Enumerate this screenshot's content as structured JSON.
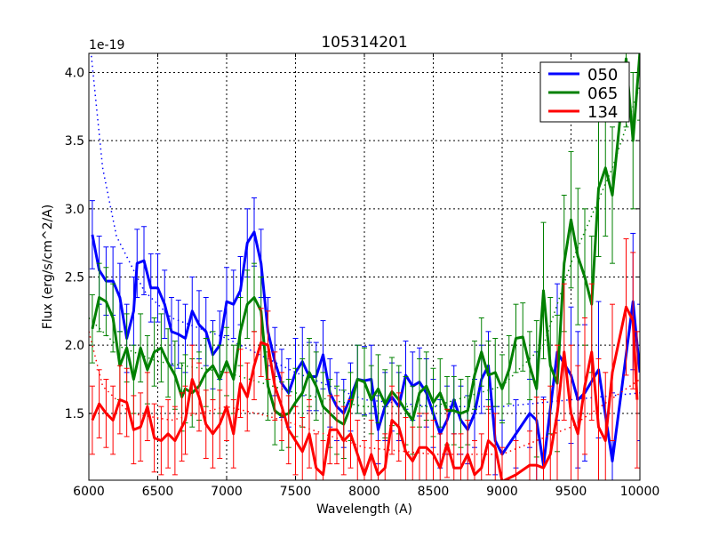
{
  "chart_data": {
    "type": "line",
    "title": "105314201",
    "xlabel": "Wavelength (A)",
    "ylabel": "Flux (erg/s/cm^2/A)",
    "offset_text": "1e-19",
    "xlim": [
      6000,
      10000
    ],
    "ylim": [
      1.01,
      4.14
    ],
    "xticks": [
      6000,
      6500,
      7000,
      7500,
      8000,
      8500,
      9000,
      9500,
      10000
    ],
    "yticks": [
      1.5,
      2.0,
      2.5,
      3.0,
      3.5,
      4.0
    ],
    "ytick_labels": [
      "1.5",
      "2.0",
      "2.5",
      "3.0",
      "3.5",
      "4.0"
    ],
    "grid": true,
    "legend_position": "top-right",
    "series": [
      {
        "name": "050",
        "color": "#0000ff",
        "err": 0.25,
        "err_red": 0.5,
        "x": [
          6025,
          6075,
          6125,
          6175,
          6225,
          6275,
          6325,
          6350,
          6400,
          6450,
          6500,
          6550,
          6600,
          6650,
          6700,
          6750,
          6800,
          6850,
          6900,
          6950,
          7000,
          7050,
          7100,
          7150,
          7200,
          7250,
          7300,
          7350,
          7400,
          7450,
          7500,
          7550,
          7600,
          7650,
          7700,
          7750,
          7800,
          7850,
          7900,
          7950,
          8000,
          8050,
          8100,
          8150,
          8200,
          8250,
          8300,
          8350,
          8400,
          8450,
          8500,
          8550,
          8600,
          8650,
          8700,
          8750,
          8800,
          8850,
          8900,
          8950,
          9000,
          9100,
          9200,
          9250,
          9300,
          9400,
          9500,
          9550,
          9600,
          9700,
          9800,
          9950,
          10000
        ],
        "y": [
          2.81,
          2.55,
          2.47,
          2.47,
          2.35,
          2.05,
          2.25,
          2.6,
          2.62,
          2.42,
          2.42,
          2.3,
          2.1,
          2.08,
          2.05,
          2.25,
          2.15,
          2.1,
          1.93,
          2.0,
          2.32,
          2.3,
          2.4,
          2.75,
          2.83,
          2.6,
          2.1,
          1.88,
          1.72,
          1.65,
          1.8,
          1.88,
          1.77,
          1.77,
          1.93,
          1.65,
          1.55,
          1.5,
          1.62,
          1.75,
          1.74,
          1.75,
          1.38,
          1.55,
          1.62,
          1.55,
          1.78,
          1.7,
          1.73,
          1.65,
          1.5,
          1.35,
          1.45,
          1.6,
          1.45,
          1.38,
          1.5,
          1.75,
          1.85,
          1.3,
          1.2,
          1.35,
          1.5,
          1.45,
          1.12,
          1.95,
          1.78,
          1.6,
          1.65,
          1.82,
          1.15,
          2.32,
          1.8
        ],
        "model": {
          "x": [
            6000,
            6100,
            6200,
            6400,
            6600,
            7000,
            7500,
            8000,
            8500,
            9000,
            9500,
            10000
          ],
          "y": [
            4.3,
            3.3,
            2.8,
            2.4,
            2.2,
            2.05,
            1.8,
            1.6,
            1.55,
            1.55,
            1.6,
            1.65
          ]
        }
      },
      {
        "name": "065",
        "color": "#008000",
        "err": 0.25,
        "err_red": 0.5,
        "x": [
          6025,
          6075,
          6125,
          6175,
          6225,
          6275,
          6325,
          6375,
          6425,
          6475,
          6525,
          6575,
          6625,
          6675,
          6700,
          6750,
          6800,
          6850,
          6900,
          6950,
          7000,
          7050,
          7100,
          7150,
          7200,
          7250,
          7300,
          7350,
          7400,
          7450,
          7500,
          7550,
          7600,
          7650,
          7700,
          7750,
          7800,
          7850,
          7900,
          7950,
          8000,
          8050,
          8100,
          8150,
          8200,
          8250,
          8300,
          8350,
          8400,
          8450,
          8500,
          8550,
          8600,
          8650,
          8700,
          8750,
          8800,
          8850,
          8900,
          8950,
          9000,
          9050,
          9100,
          9150,
          9200,
          9250,
          9300,
          9350,
          9400,
          9450,
          9500,
          9550,
          9600,
          9650,
          9700,
          9750,
          9800,
          9900,
          9950,
          10000
        ],
        "y": [
          2.12,
          2.35,
          2.32,
          2.2,
          1.85,
          1.98,
          1.75,
          1.98,
          1.82,
          1.95,
          1.98,
          1.87,
          1.78,
          1.62,
          1.68,
          1.65,
          1.7,
          1.8,
          1.85,
          1.75,
          1.88,
          1.75,
          2.1,
          2.3,
          2.35,
          2.25,
          1.7,
          1.52,
          1.48,
          1.5,
          1.58,
          1.65,
          1.8,
          1.7,
          1.55,
          1.5,
          1.45,
          1.42,
          1.55,
          1.75,
          1.73,
          1.6,
          1.68,
          1.57,
          1.66,
          1.6,
          1.52,
          1.45,
          1.65,
          1.7,
          1.58,
          1.65,
          1.52,
          1.52,
          1.5,
          1.52,
          1.78,
          1.95,
          1.78,
          1.8,
          1.68,
          1.82,
          2.05,
          2.06,
          1.85,
          1.68,
          2.4,
          1.85,
          1.72,
          2.6,
          2.92,
          2.65,
          2.5,
          2.3,
          3.15,
          3.3,
          3.1,
          4.1,
          3.5,
          4.15
        ],
        "model": {
          "x": [
            6000,
            6200,
            6500,
            7000,
            7500,
            8000,
            8500,
            9000,
            9300,
            9500,
            9800,
            10000
          ],
          "y": [
            2.2,
            2.0,
            1.88,
            1.8,
            1.65,
            1.55,
            1.55,
            1.7,
            2.0,
            2.6,
            3.3,
            3.9
          ]
        }
      },
      {
        "name": "134",
        "color": "#ff0000",
        "err": 0.25,
        "err_red": 0.5,
        "x": [
          6025,
          6075,
          6125,
          6175,
          6225,
          6275,
          6325,
          6375,
          6425,
          6475,
          6525,
          6575,
          6625,
          6675,
          6700,
          6750,
          6800,
          6850,
          6900,
          6950,
          7000,
          7050,
          7100,
          7150,
          7200,
          7250,
          7300,
          7350,
          7400,
          7450,
          7500,
          7550,
          7600,
          7650,
          7700,
          7750,
          7800,
          7850,
          7900,
          7950,
          8000,
          8050,
          8100,
          8150,
          8200,
          8250,
          8300,
          8350,
          8400,
          8450,
          8500,
          8550,
          8600,
          8650,
          8700,
          8750,
          8800,
          8850,
          8900,
          8950,
          9000,
          9100,
          9200,
          9250,
          9300,
          9350,
          9400,
          9450,
          9500,
          9550,
          9600,
          9650,
          9700,
          9750,
          9800,
          9900,
          9950,
          9980
        ],
        "y": [
          1.45,
          1.57,
          1.5,
          1.45,
          1.6,
          1.58,
          1.38,
          1.4,
          1.55,
          1.32,
          1.3,
          1.35,
          1.3,
          1.4,
          1.45,
          1.75,
          1.62,
          1.42,
          1.35,
          1.42,
          1.55,
          1.35,
          1.72,
          1.62,
          1.85,
          2.02,
          2.0,
          1.7,
          1.55,
          1.38,
          1.3,
          1.22,
          1.35,
          1.1,
          1.05,
          1.38,
          1.38,
          1.3,
          1.35,
          1.2,
          1.05,
          1.2,
          1.05,
          1.1,
          1.45,
          1.4,
          1.22,
          1.15,
          1.25,
          1.25,
          1.2,
          1.1,
          1.28,
          1.1,
          1.1,
          1.2,
          1.05,
          1.1,
          1.3,
          1.25,
          1.0,
          1.05,
          1.12,
          1.12,
          1.1,
          1.2,
          1.5,
          1.95,
          1.5,
          1.35,
          1.7,
          1.95,
          1.4,
          1.3,
          1.8,
          2.28,
          2.18,
          1.6
        ],
        "model": {
          "x": [
            6000,
            6100,
            6300,
            6600,
            7000,
            7300,
            7500,
            8000,
            8500,
            9000,
            9500,
            10000
          ],
          "y": [
            2.1,
            1.7,
            1.5,
            1.45,
            1.55,
            1.48,
            1.42,
            1.25,
            1.2,
            1.2,
            1.4,
            1.75
          ]
        }
      }
    ]
  }
}
